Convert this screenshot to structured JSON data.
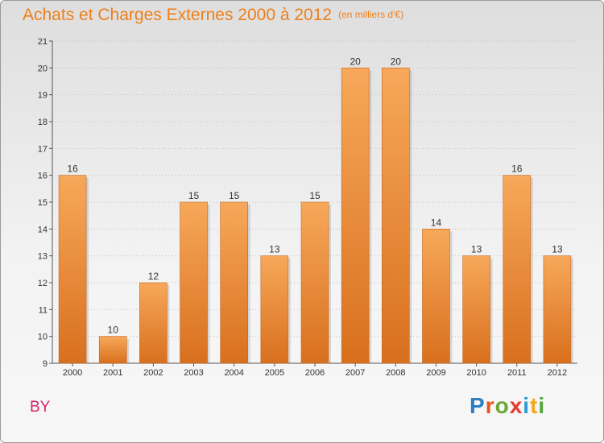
{
  "header": {
    "title": "Achats et Charges Externes 2000 à 2012",
    "unit": "(en milliers d'€)"
  },
  "footer": {
    "commune": "BY",
    "logo": [
      "P",
      "r",
      "o",
      "x",
      "i",
      "t",
      "i"
    ]
  },
  "colors": {
    "title": "#ee7f1b",
    "commune": "#d8246a",
    "bar_top": "#f7a85a",
    "bar_bottom": "#d8701e",
    "logo": [
      "#2d7fc1",
      "#e8541a",
      "#69a833",
      "#e53b2b",
      "#2d9cd6",
      "#f2a51a",
      "#4fa83c"
    ]
  },
  "chart_data": {
    "type": "bar",
    "categories": [
      "2000",
      "2001",
      "2002",
      "2003",
      "2004",
      "2005",
      "2006",
      "2007",
      "2008",
      "2009",
      "2010",
      "2011",
      "2012"
    ],
    "values": [
      16,
      10,
      12,
      15,
      15,
      13,
      15,
      20,
      20,
      14,
      13,
      16,
      13
    ],
    "ylim": [
      9,
      21
    ],
    "yticks": [
      9,
      10,
      11,
      12,
      13,
      14,
      15,
      16,
      17,
      18,
      19,
      20,
      21
    ],
    "grid": "horizontal-dotted",
    "data_labels": true
  }
}
